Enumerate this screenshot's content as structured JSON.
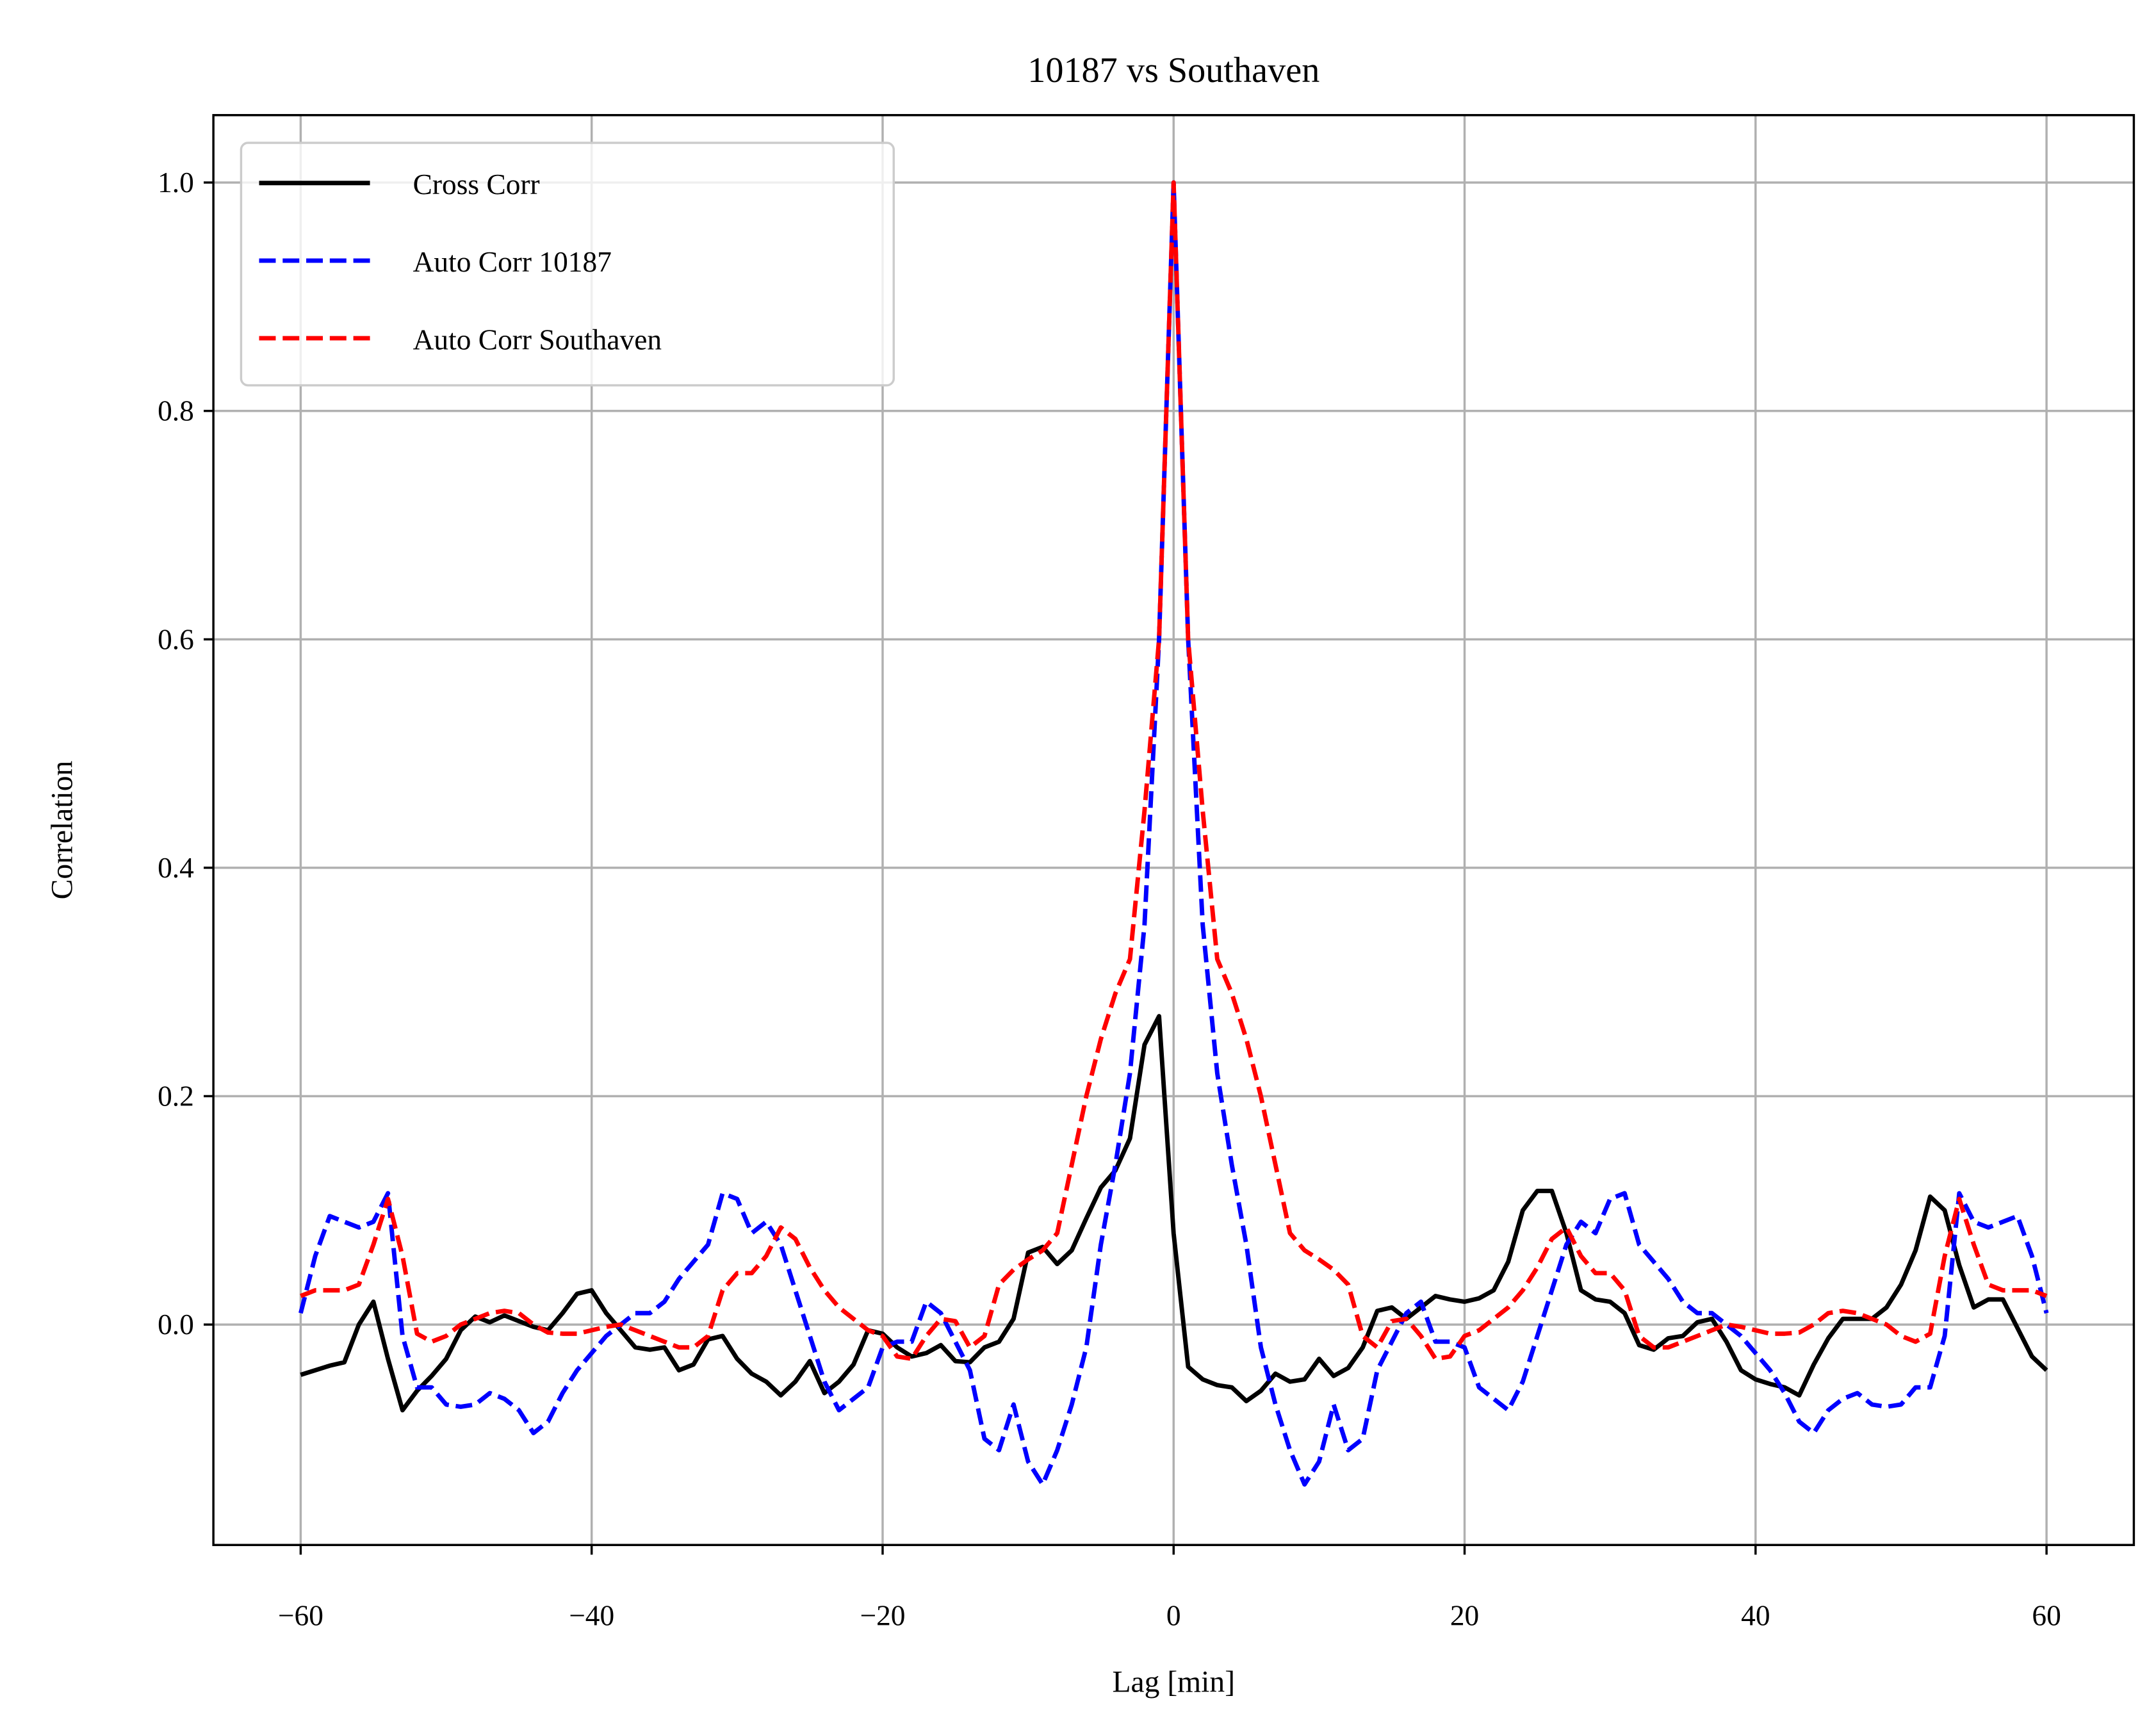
{
  "chart_data": {
    "type": "line",
    "title": "10187 vs Southaven",
    "x_label": "Lag [min]",
    "y_label": "Correlation",
    "x": [
      -60,
      -59,
      -58,
      -57,
      -56,
      -55,
      -54,
      -53,
      -52,
      -51,
      -50,
      -49,
      -48,
      -47,
      -46,
      -45,
      -44,
      -43,
      -42,
      -41,
      -40,
      -39,
      -38,
      -37,
      -36,
      -35,
      -34,
      -33,
      -32,
      -31,
      -30,
      -29,
      -28,
      -27,
      -26,
      -25,
      -24,
      -23,
      -22,
      -21,
      -20,
      -19,
      -18,
      -17,
      -16,
      -15,
      -14,
      -13,
      -12,
      -11,
      -10,
      -9,
      -8,
      -7,
      -6,
      -5,
      -4,
      -3,
      -2,
      -1,
      0,
      1,
      2,
      3,
      4,
      5,
      6,
      7,
      8,
      9,
      10,
      11,
      12,
      13,
      14,
      15,
      16,
      17,
      18,
      19,
      20,
      21,
      22,
      23,
      24,
      25,
      26,
      27,
      28,
      29,
      30,
      31,
      32,
      33,
      34,
      35,
      36,
      37,
      38,
      39,
      40,
      41,
      42,
      43,
      44,
      45,
      46,
      47,
      48,
      49,
      50,
      51,
      52,
      53,
      54,
      55,
      56,
      57,
      58,
      59,
      60
    ],
    "series": [
      {
        "name": "Cross Corr",
        "color": "#000000",
        "dash": false,
        "values": [
          -0.044,
          -0.04,
          -0.036,
          -0.033,
          0.0,
          0.02,
          -0.03,
          -0.075,
          -0.058,
          -0.045,
          -0.03,
          -0.005,
          0.007,
          0.002,
          0.008,
          0.003,
          -0.002,
          -0.005,
          0.01,
          0.027,
          0.03,
          0.01,
          -0.005,
          -0.02,
          -0.022,
          -0.02,
          -0.04,
          -0.035,
          -0.013,
          -0.01,
          -0.03,
          -0.043,
          -0.05,
          -0.062,
          -0.05,
          -0.032,
          -0.06,
          -0.05,
          -0.035,
          -0.005,
          -0.008,
          -0.02,
          -0.028,
          -0.025,
          -0.018,
          -0.032,
          -0.033,
          -0.02,
          -0.015,
          0.005,
          0.063,
          0.068,
          0.053,
          0.065,
          0.093,
          0.12,
          0.135,
          0.163,
          0.245,
          0.27,
          0.08,
          -0.037,
          -0.048,
          -0.053,
          -0.055,
          -0.067,
          -0.058,
          -0.043,
          -0.05,
          -0.048,
          -0.03,
          -0.045,
          -0.038,
          -0.02,
          0.012,
          0.015,
          0.005,
          0.015,
          0.025,
          0.022,
          0.02,
          0.023,
          0.03,
          0.055,
          0.1,
          0.117,
          0.117,
          0.08,
          0.03,
          0.022,
          0.02,
          0.01,
          -0.018,
          -0.022,
          -0.012,
          -0.01,
          0.002,
          0.005,
          -0.015,
          -0.04,
          -0.048,
          -0.052,
          -0.055,
          -0.062,
          -0.035,
          -0.012,
          0.005,
          0.005,
          0.005,
          0.015,
          0.035,
          0.065,
          0.112,
          0.1,
          0.052,
          0.015,
          0.022,
          0.022,
          -0.003,
          -0.028,
          -0.04
        ]
      },
      {
        "name": "Auto Corr 10187",
        "color": "#0000ff",
        "dash": true,
        "values": [
          0.01,
          0.06,
          0.095,
          0.09,
          0.085,
          0.09,
          0.115,
          -0.01,
          -0.055,
          -0.055,
          -0.07,
          -0.072,
          -0.07,
          -0.06,
          -0.065,
          -0.075,
          -0.095,
          -0.085,
          -0.06,
          -0.04,
          -0.025,
          -0.01,
          0.0,
          0.01,
          0.01,
          0.02,
          0.04,
          0.055,
          0.07,
          0.115,
          0.11,
          0.08,
          0.09,
          0.07,
          0.03,
          -0.01,
          -0.05,
          -0.075,
          -0.065,
          -0.055,
          -0.02,
          -0.015,
          -0.015,
          0.02,
          0.01,
          -0.015,
          -0.04,
          -0.1,
          -0.11,
          -0.07,
          -0.12,
          -0.14,
          -0.11,
          -0.07,
          -0.02,
          0.07,
          0.14,
          0.22,
          0.35,
          0.6,
          1.0,
          0.6,
          0.35,
          0.22,
          0.14,
          0.07,
          -0.02,
          -0.07,
          -0.11,
          -0.14,
          -0.12,
          -0.07,
          -0.11,
          -0.1,
          -0.04,
          -0.015,
          0.01,
          0.02,
          -0.015,
          -0.015,
          -0.02,
          -0.055,
          -0.065,
          -0.075,
          -0.05,
          -0.01,
          0.03,
          0.07,
          0.09,
          0.08,
          0.11,
          0.115,
          0.07,
          0.055,
          0.04,
          0.02,
          0.01,
          0.01,
          0.0,
          -0.01,
          -0.025,
          -0.04,
          -0.06,
          -0.085,
          -0.095,
          -0.075,
          -0.065,
          -0.06,
          -0.07,
          -0.072,
          -0.07,
          -0.055,
          -0.055,
          -0.01,
          0.115,
          0.09,
          0.085,
          0.09,
          0.095,
          0.06,
          0.01
        ]
      },
      {
        "name": "Auto Corr Southaven",
        "color": "#ff0000",
        "dash": true,
        "values": [
          0.025,
          0.03,
          0.03,
          0.03,
          0.035,
          0.07,
          0.11,
          0.06,
          -0.008,
          -0.015,
          -0.01,
          0.0,
          0.005,
          0.01,
          0.012,
          0.01,
          0.0,
          -0.007,
          -0.008,
          -0.008,
          -0.005,
          -0.002,
          0.0,
          -0.005,
          -0.01,
          -0.015,
          -0.02,
          -0.02,
          -0.01,
          0.03,
          0.045,
          0.045,
          0.06,
          0.085,
          0.075,
          0.05,
          0.03,
          0.015,
          0.005,
          -0.005,
          -0.01,
          -0.028,
          -0.03,
          -0.01,
          0.005,
          0.003,
          -0.02,
          -0.01,
          0.035,
          0.048,
          0.057,
          0.065,
          0.08,
          0.14,
          0.2,
          0.25,
          0.29,
          0.32,
          0.45,
          0.6,
          1.0,
          0.6,
          0.45,
          0.32,
          0.29,
          0.25,
          0.2,
          0.14,
          0.08,
          0.065,
          0.057,
          0.048,
          0.035,
          -0.01,
          -0.02,
          0.003,
          0.005,
          -0.01,
          -0.03,
          -0.028,
          -0.01,
          -0.005,
          0.005,
          0.015,
          0.03,
          0.05,
          0.075,
          0.085,
          0.06,
          0.045,
          0.045,
          0.03,
          -0.01,
          -0.02,
          -0.02,
          -0.015,
          -0.01,
          -0.005,
          0.0,
          -0.002,
          -0.005,
          -0.008,
          -0.008,
          -0.007,
          0.0,
          0.01,
          0.012,
          0.01,
          0.005,
          0.0,
          -0.01,
          -0.015,
          -0.008,
          0.06,
          0.11,
          0.07,
          0.035,
          0.03,
          0.03,
          0.03,
          0.025
        ]
      }
    ],
    "xlim": [
      -66,
      66
    ],
    "ylim": [
      -0.193,
      1.059
    ],
    "xticks": [
      {
        "value": -60,
        "label": "−60"
      },
      {
        "value": -40,
        "label": "−40"
      },
      {
        "value": -20,
        "label": "−20"
      },
      0,
      20,
      40,
      60
    ],
    "yticks": [
      {
        "value": 0,
        "label": "0.0"
      },
      0.2,
      0.4,
      0.6,
      0.8,
      {
        "value": 1,
        "label": "1.0"
      }
    ],
    "grid": true,
    "legend": "upper left"
  }
}
